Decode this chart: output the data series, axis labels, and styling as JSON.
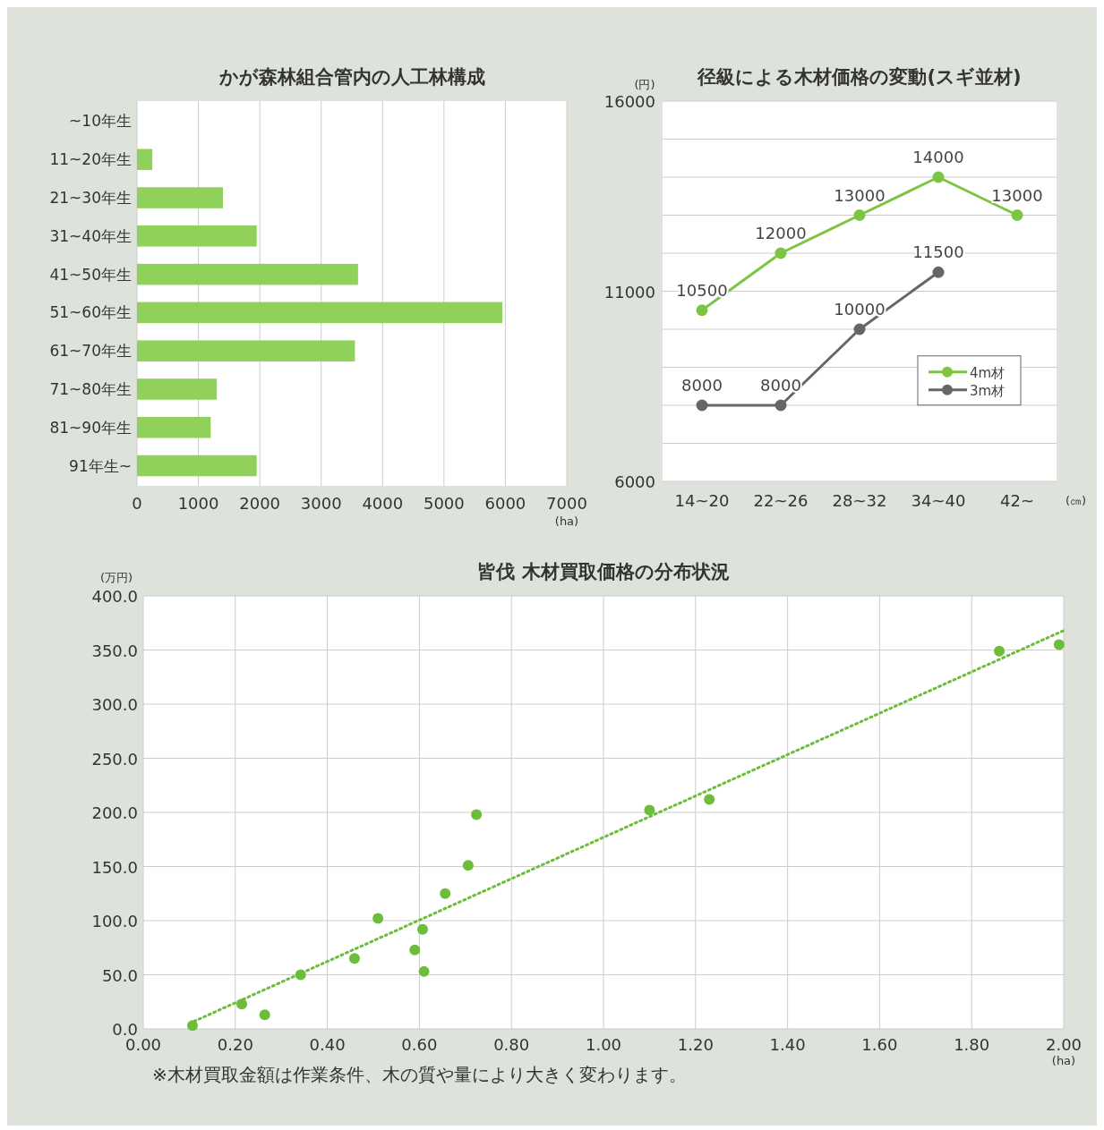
{
  "chart_data": [
    {
      "type": "bar",
      "title": "かが森林組合管内の人工林構成",
      "orientation": "horizontal",
      "xlabel": "(ha)",
      "categories": [
        "~10年生",
        "11~20年生",
        "21~30年生",
        "31~40年生",
        "41~50年生",
        "51~60年生",
        "61~70年生",
        "71~80年生",
        "81~90年生",
        "91年生~"
      ],
      "values": [
        0,
        250,
        1400,
        1950,
        3600,
        5950,
        3550,
        1300,
        1200,
        1950
      ],
      "color": "#8fd15a",
      "xlim": [
        0,
        7000
      ],
      "xticks": [
        0,
        1000,
        2000,
        3000,
        4000,
        5000,
        6000,
        7000
      ],
      "grid": "x"
    },
    {
      "type": "line",
      "title": "径級による木材価格の変動(スギ並材)",
      "ylabel": "(円)",
      "xlabel": "(㎝)",
      "categories": [
        "14~20",
        "22~26",
        "28~32",
        "34~40",
        "42~"
      ],
      "series": [
        {
          "name": "4m材",
          "color": "#7dc443",
          "values": [
            10500,
            12000,
            13000,
            14000,
            13000
          ]
        },
        {
          "name": "3m材",
          "color": "#666666",
          "values": [
            8000,
            8000,
            10000,
            11500,
            null
          ]
        }
      ],
      "ylim": [
        6000,
        16000
      ],
      "yticks": [
        6000,
        {
          "value": 7000,
          "label": null
        },
        {
          "value": 8000,
          "label": null
        },
        {
          "value": 9000,
          "label": null
        },
        {
          "value": 10000,
          "label": null
        },
        11000,
        {
          "value": 12000,
          "label": null
        },
        {
          "value": 13000,
          "label": null
        },
        {
          "value": 14000,
          "label": null
        },
        {
          "value": 15000,
          "label": null
        },
        16000
      ],
      "grid": "y",
      "marker": "circle",
      "data_labels": true,
      "legend": "right"
    },
    {
      "type": "scatter",
      "title": "皆伐 木材買取価格の分布状況",
      "ylabel": "(万円)",
      "xlabel": "(ha)",
      "annotations": [
        "※木材買取金額は作業条件、木の質や量により大きく変わります。"
      ],
      "series": [
        {
          "type": "scatter",
          "color": "#6cbd3a",
          "marker": "circle",
          "x": [
            0.107,
            0.214,
            0.264,
            0.342,
            0.459,
            0.51,
            0.59,
            0.607,
            0.61,
            0.656,
            0.706,
            0.724,
            1.1,
            1.23,
            1.86,
            1.99
          ],
          "values": [
            3,
            23,
            13,
            50,
            65,
            102,
            73,
            92,
            53,
            125,
            151,
            198,
            202,
            212,
            349,
            355
          ]
        },
        {
          "type": "line",
          "color": "#6cbd3a",
          "line_style": "dotted",
          "x": [
            0.1,
            2.0
          ],
          "values": [
            5,
            368
          ]
        }
      ],
      "xlim": [
        0,
        2
      ],
      "xticks": [
        {
          "value": 0,
          "label": "0.00"
        },
        {
          "value": 0.2,
          "label": "0.20"
        },
        {
          "value": 0.4,
          "label": "0.40"
        },
        {
          "value": 0.6,
          "label": "0.60"
        },
        {
          "value": 0.8,
          "label": "0.80"
        },
        {
          "value": 1,
          "label": "1.00"
        },
        {
          "value": 1.2,
          "label": "1.20"
        },
        {
          "value": 1.4,
          "label": "1.40"
        },
        {
          "value": 1.6,
          "label": "1.60"
        },
        {
          "value": 1.8,
          "label": "1.80"
        },
        {
          "value": 2,
          "label": "2.00"
        }
      ],
      "ylim": [
        0,
        400
      ],
      "yticks": [
        {
          "value": 0,
          "label": "0.0"
        },
        {
          "value": 50,
          "label": "50.0"
        },
        {
          "value": 100,
          "label": "100.0"
        },
        {
          "value": 150,
          "label": "150.0"
        },
        {
          "value": 200,
          "label": "200.0"
        },
        {
          "value": 250,
          "label": "250.0"
        },
        {
          "value": 300,
          "label": "300.0"
        },
        {
          "value": 350,
          "label": "350.0"
        },
        {
          "value": 400,
          "label": "400.0"
        }
      ],
      "grid": true
    }
  ]
}
